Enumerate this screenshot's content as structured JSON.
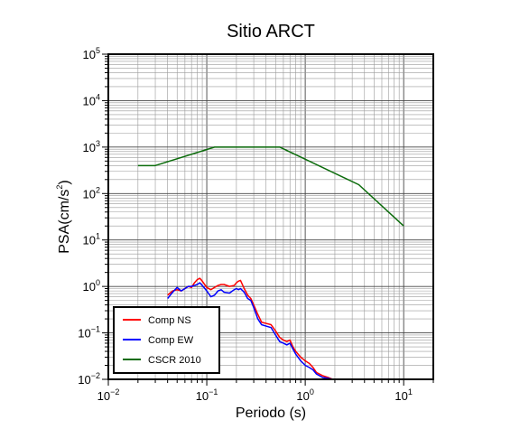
{
  "chart_data": {
    "type": "line",
    "title": "Sitio ARCT",
    "xlabel": "Periodo (s)",
    "ylabel_main": "PSA(cm/s",
    "ylabel_sup": "2",
    "ylabel_end": ")",
    "xscale": "log",
    "yscale": "log",
    "xlim": [
      0.01,
      20
    ],
    "ylim": [
      0.01,
      100000
    ],
    "grid": true,
    "legend_position": "bottom-left",
    "x_ticks": [
      {
        "base": "10",
        "exp": "−2",
        "value": 0.01
      },
      {
        "base": "10",
        "exp": "−1",
        "value": 0.1
      },
      {
        "base": "10",
        "exp": "0",
        "value": 1
      },
      {
        "base": "10",
        "exp": "1",
        "value": 10
      }
    ],
    "y_ticks": [
      {
        "base": "10",
        "exp": "−2",
        "value": 0.01
      },
      {
        "base": "10",
        "exp": "−1",
        "value": 0.1
      },
      {
        "base": "10",
        "exp": "0",
        "value": 1
      },
      {
        "base": "10",
        "exp": "1",
        "value": 10
      },
      {
        "base": "10",
        "exp": "2",
        "value": 100
      },
      {
        "base": "10",
        "exp": "3",
        "value": 1000
      },
      {
        "base": "10",
        "exp": "4",
        "value": 10000
      },
      {
        "base": "10",
        "exp": "5",
        "value": 100000
      }
    ],
    "series": [
      {
        "name": "Comp NS",
        "color": "#ff0000",
        "x": [
          0.04,
          0.045,
          0.05,
          0.055,
          0.06,
          0.065,
          0.07,
          0.075,
          0.08,
          0.085,
          0.09,
          0.1,
          0.11,
          0.12,
          0.13,
          0.14,
          0.15,
          0.17,
          0.19,
          0.2,
          0.21,
          0.22,
          0.24,
          0.26,
          0.28,
          0.3,
          0.33,
          0.36,
          0.4,
          0.45,
          0.5,
          0.55,
          0.6,
          0.65,
          0.7,
          0.75,
          0.8,
          0.9,
          1.0,
          1.1,
          1.2,
          1.3,
          1.5,
          1.7,
          1.9
        ],
        "y": [
          0.65,
          0.8,
          0.85,
          0.8,
          0.9,
          1.0,
          0.95,
          1.2,
          1.4,
          1.5,
          1.3,
          0.95,
          0.85,
          0.95,
          1.05,
          1.1,
          1.1,
          1.0,
          1.05,
          1.2,
          1.3,
          1.35,
          0.9,
          0.65,
          0.55,
          0.4,
          0.25,
          0.17,
          0.16,
          0.15,
          0.11,
          0.08,
          0.07,
          0.065,
          0.07,
          0.05,
          0.04,
          0.03,
          0.025,
          0.022,
          0.018,
          0.014,
          0.012,
          0.011,
          0.01
        ]
      },
      {
        "name": "Comp EW",
        "color": "#0000ff",
        "x": [
          0.04,
          0.045,
          0.05,
          0.055,
          0.06,
          0.065,
          0.07,
          0.075,
          0.08,
          0.085,
          0.09,
          0.1,
          0.11,
          0.12,
          0.13,
          0.14,
          0.15,
          0.17,
          0.19,
          0.2,
          0.21,
          0.22,
          0.24,
          0.26,
          0.28,
          0.3,
          0.33,
          0.36,
          0.4,
          0.45,
          0.5,
          0.55,
          0.6,
          0.65,
          0.7,
          0.75,
          0.8,
          0.9,
          1.0,
          1.1,
          1.2,
          1.3,
          1.5,
          1.7,
          1.9
        ],
        "y": [
          0.55,
          0.75,
          0.95,
          0.8,
          0.9,
          1.0,
          1.0,
          1.05,
          1.1,
          1.2,
          1.05,
          0.8,
          0.6,
          0.65,
          0.8,
          0.85,
          0.75,
          0.72,
          0.85,
          0.9,
          0.85,
          0.9,
          0.75,
          0.55,
          0.5,
          0.35,
          0.2,
          0.15,
          0.14,
          0.13,
          0.09,
          0.065,
          0.06,
          0.055,
          0.06,
          0.045,
          0.035,
          0.025,
          0.02,
          0.018,
          0.016,
          0.013,
          0.011,
          0.0105,
          0.01
        ]
      },
      {
        "name": "CSCR 2010",
        "color": "#0a6b0a",
        "x": [
          0.02,
          0.03,
          0.12,
          0.55,
          3.5,
          10
        ],
        "y": [
          400,
          400,
          1000,
          1000,
          155,
          20
        ]
      }
    ]
  }
}
